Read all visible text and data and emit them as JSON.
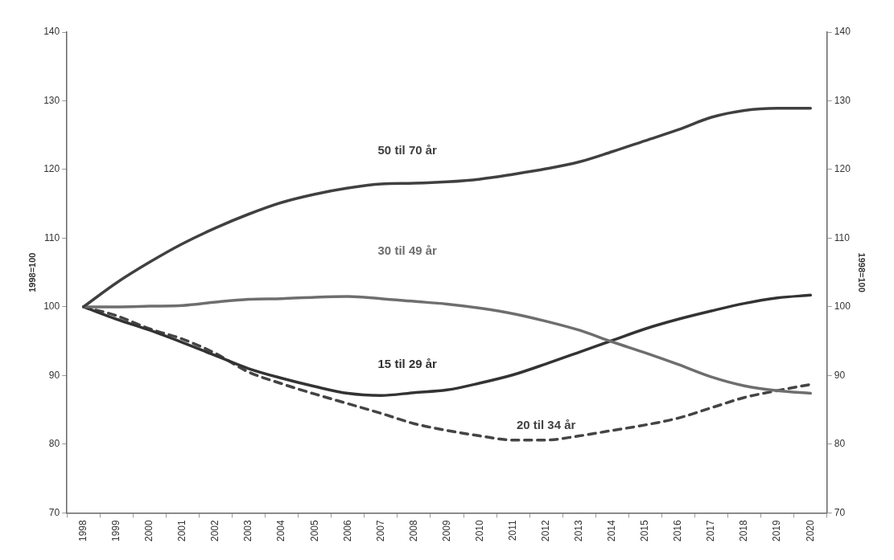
{
  "chart_data": {
    "type": "line",
    "ylabel": "1998=100",
    "y2label": "1998=100",
    "categories": [
      "1998",
      "1999",
      "2000",
      "2001",
      "2002",
      "2003",
      "2004",
      "2005",
      "2006",
      "2007",
      "2008",
      "2009",
      "2010",
      "2011",
      "2012",
      "2013",
      "2014",
      "2015",
      "2016",
      "2017",
      "2018",
      "2019",
      "2020"
    ],
    "ylim": [
      70,
      140
    ],
    "yticks": [
      70,
      80,
      90,
      100,
      110,
      120,
      130,
      140
    ],
    "y2lim": [
      70,
      140
    ],
    "y2ticks": [
      70,
      80,
      90,
      100,
      110,
      120,
      130,
      140
    ],
    "grid": false,
    "legend": false,
    "marker": "none",
    "series": [
      {
        "name": "50 til 70 år",
        "color": "#404040",
        "line_style": "solid",
        "values": [
          100,
          103.5,
          106.5,
          109.2,
          111.5,
          113.5,
          115.2,
          116.4,
          117.3,
          117.9,
          118.0,
          118.2,
          118.6,
          119.3,
          120.1,
          121.1,
          122.6,
          124.2,
          125.8,
          127.6,
          128.6,
          128.9,
          128.9
        ]
      },
      {
        "name": "30 til 49 år",
        "color": "#6e6e6e",
        "line_style": "solid",
        "values": [
          100,
          100.0,
          100.1,
          100.2,
          100.7,
          101.1,
          101.2,
          101.4,
          101.5,
          101.2,
          100.8,
          100.4,
          99.8,
          99.0,
          97.9,
          96.6,
          94.9,
          93.3,
          91.6,
          89.8,
          88.5,
          87.8,
          87.4
        ]
      },
      {
        "name": "15 til 29 år",
        "color": "#333333",
        "line_style": "solid",
        "values": [
          100,
          98.2,
          96.6,
          94.8,
          92.9,
          91.0,
          89.6,
          88.4,
          87.4,
          87.1,
          87.5,
          87.9,
          88.9,
          90.1,
          91.7,
          93.4,
          95.1,
          96.8,
          98.2,
          99.4,
          100.5,
          101.3,
          101.7
        ]
      },
      {
        "name": "20 til 34 år",
        "color": "#444444",
        "line_style": "dashed",
        "values": [
          100,
          98.7,
          96.8,
          95.3,
          93.2,
          90.5,
          88.8,
          87.3,
          85.9,
          84.5,
          83.0,
          82.0,
          81.2,
          80.6,
          80.6,
          81.2,
          82.0,
          82.8,
          83.8,
          85.3,
          86.8,
          87.8,
          88.7
        ]
      }
    ]
  }
}
